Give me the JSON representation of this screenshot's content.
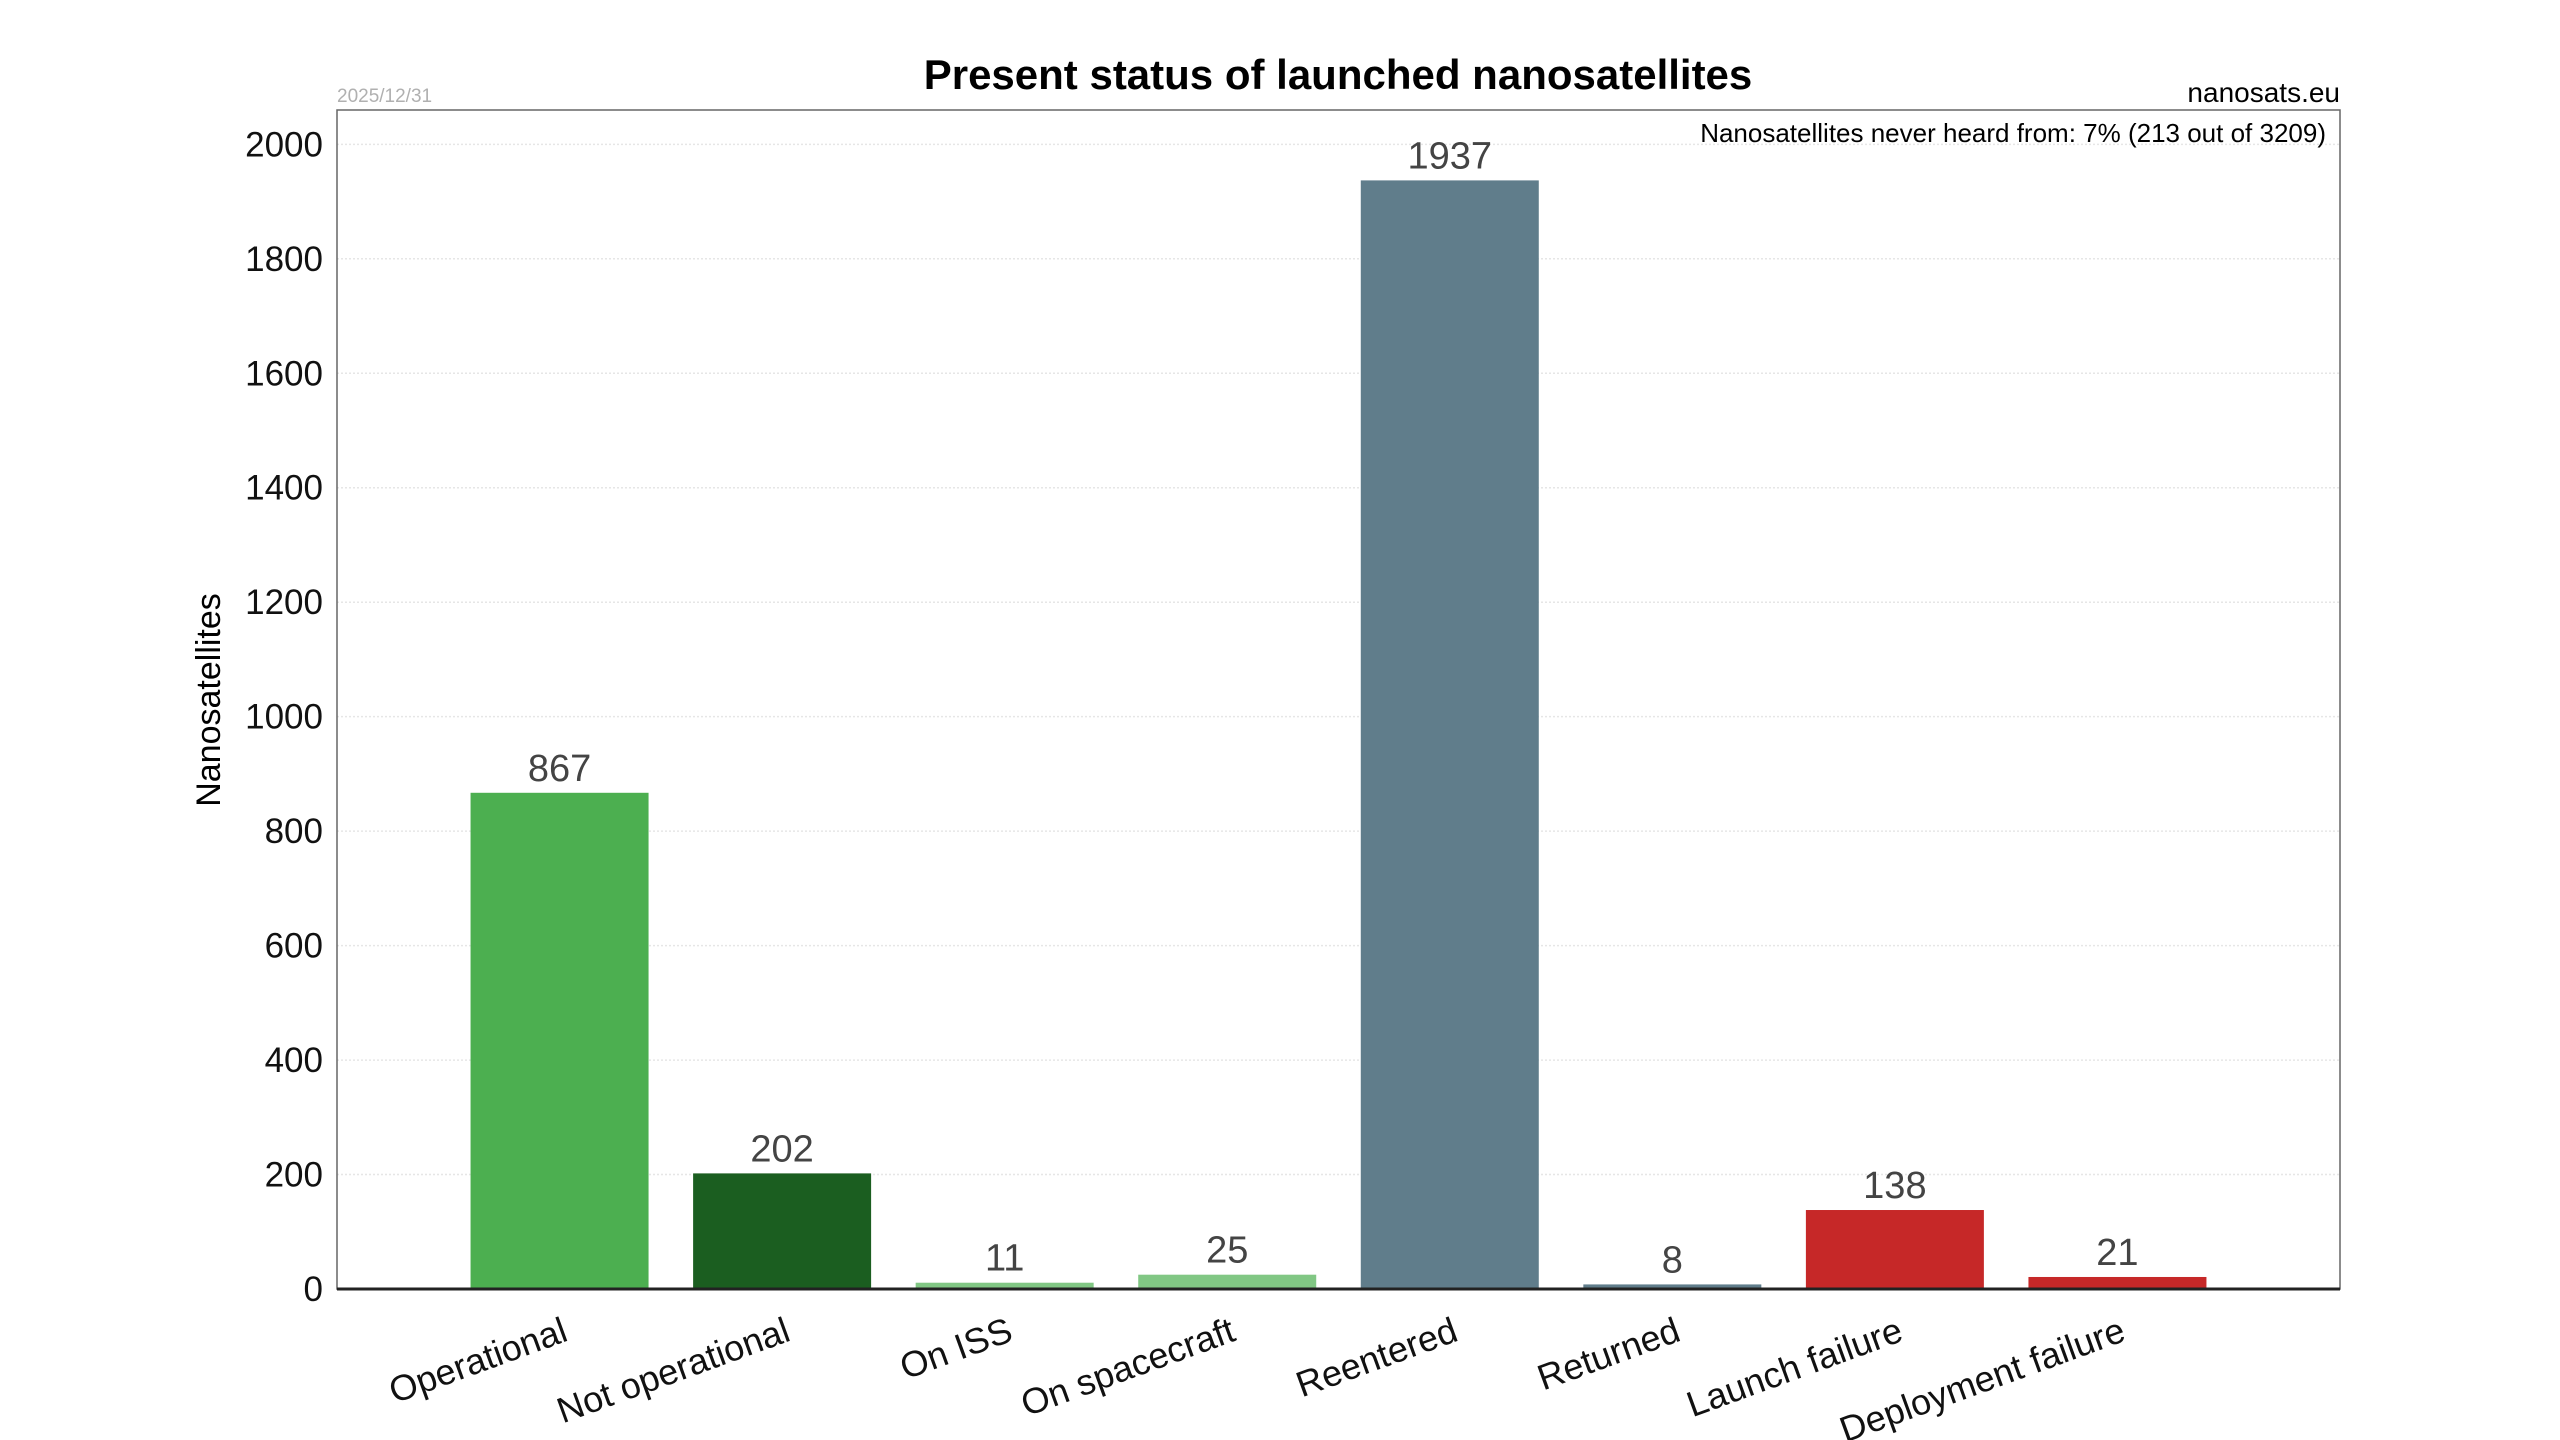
{
  "chart_data": {
    "type": "bar",
    "title": "Present status of launched nanosatellites",
    "date": "2025/12/31",
    "source": "nanosats.eu",
    "annotation": "Nanosatellites never heard from: 7% (213 out of 3209)",
    "xlabel": "",
    "ylabel": "Nanosatellites",
    "ylim": [
      0,
      2060
    ],
    "yticks": [
      0,
      200,
      400,
      600,
      800,
      1000,
      1200,
      1400,
      1600,
      1800,
      2000
    ],
    "grid": true,
    "categories": [
      "Operational",
      "Not operational",
      "On ISS",
      "On spacecraft",
      "Reentered",
      "Returned",
      "Launch failure",
      "Deployment failure"
    ],
    "values": [
      867,
      202,
      11,
      25,
      1937,
      8,
      138,
      21
    ],
    "colors": [
      "#4caf50",
      "#1b5e20",
      "#81c784",
      "#81c784",
      "#607d8b",
      "#607d8b",
      "#c62828",
      "#c62828"
    ]
  }
}
